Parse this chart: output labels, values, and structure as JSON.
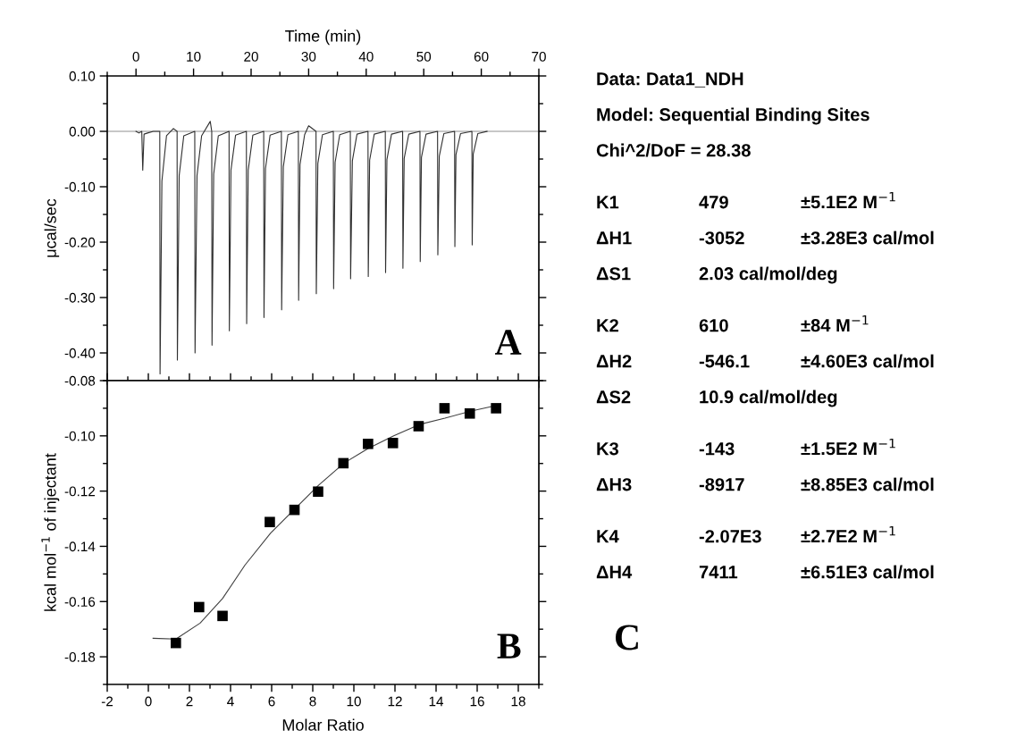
{
  "chart_data": [
    {
      "type": "line",
      "xlabel": "Time (min)",
      "ylabel": "μcal/sec",
      "xlim": [
        -5,
        70
      ],
      "xticks": [
        0,
        10,
        20,
        30,
        40,
        50,
        60,
        70
      ],
      "ylim": [
        -0.45,
        0.1
      ],
      "yticks": [
        {
          "value": 0.1,
          "label": "0.10"
        },
        {
          "value": 0.0,
          "label": "0.00"
        },
        {
          "value": -0.1,
          "label": "-0.10"
        },
        {
          "value": -0.2,
          "label": "-0.20"
        },
        {
          "value": -0.3,
          "label": "-0.30"
        },
        {
          "value": -0.4,
          "label": "-0.40"
        }
      ],
      "series": [
        {
          "color": "#303030",
          "x": [
            0,
            0.5,
            1.0,
            1.17,
            1.4,
            2.0,
            3.0,
            4.13,
            4.18,
            4.5,
            5.3,
            6.5,
            7.14,
            7.19,
            7.5,
            8.3,
            10.21,
            10.26,
            10.6,
            11.4,
            12.9,
            13.16,
            13.21,
            13.5,
            14.3,
            16.17,
            16.22,
            16.5,
            17.3,
            19.18,
            19.23,
            19.5,
            20.3,
            22.19,
            22.24,
            22.5,
            23.3,
            25.26,
            25.31,
            25.6,
            26.4,
            28.21,
            28.26,
            28.5,
            29.3,
            30.0,
            31.28,
            31.33,
            31.6,
            32.4,
            34.29,
            34.34,
            34.6,
            35.4,
            37.24,
            37.29,
            37.6,
            38.4,
            40.31,
            40.36,
            40.6,
            41.4,
            43.32,
            43.37,
            43.6,
            44.4,
            46.33,
            46.38,
            46.6,
            47.4,
            49.34,
            49.39,
            49.6,
            50.4,
            52.4,
            52.45,
            52.7,
            53.5,
            55.36,
            55.41,
            55.6,
            56.4,
            58.37,
            58.42,
            58.6,
            59.4,
            61.0
          ],
          "values": [
            0,
            -0.003,
            0,
            -0.07,
            -0.005,
            -0.003,
            0,
            0,
            -0.438,
            -0.09,
            -0.008,
            0.005,
            0,
            -0.413,
            -0.08,
            -0.008,
            0,
            -0.4,
            -0.08,
            -0.008,
            0.018,
            0,
            -0.386,
            -0.077,
            -0.008,
            0,
            -0.36,
            -0.07,
            -0.007,
            0,
            -0.347,
            -0.07,
            -0.007,
            0,
            -0.336,
            -0.067,
            -0.007,
            0,
            -0.322,
            -0.064,
            -0.006,
            0,
            -0.305,
            -0.06,
            -0.006,
            0.01,
            0,
            -0.293,
            -0.058,
            -0.006,
            0,
            -0.284,
            -0.056,
            -0.006,
            0,
            -0.266,
            -0.053,
            -0.005,
            0,
            -0.262,
            -0.052,
            -0.005,
            0,
            -0.255,
            -0.051,
            -0.005,
            0,
            -0.247,
            -0.049,
            -0.005,
            0,
            -0.235,
            -0.047,
            -0.005,
            0,
            -0.223,
            -0.045,
            -0.004,
            0,
            -0.208,
            -0.042,
            -0.004,
            0,
            -0.205,
            -0.041,
            -0.004,
            0
          ]
        }
      ],
      "ref_lines": [
        {
          "axis": "y",
          "value": 0,
          "color": "#b4b4b4"
        }
      ],
      "annotations": [
        "A"
      ]
    },
    {
      "type": "scatter",
      "xlabel": "Molar Ratio",
      "ylabel": "kcal mol$^{−1}$ of injectant",
      "xlim": [
        -2,
        19
      ],
      "xticks": [
        -2,
        0,
        2,
        4,
        6,
        8,
        10,
        12,
        14,
        16,
        18
      ],
      "ylim": [
        -0.19,
        -0.08
      ],
      "yticks": [
        {
          "value": -0.18,
          "label": "-0.18"
        },
        {
          "value": -0.16,
          "label": "-0.16"
        },
        {
          "value": -0.14,
          "label": "-0.14"
        },
        {
          "value": -0.12,
          "label": "-0.12"
        },
        {
          "value": -0.1,
          "label": "-0.10"
        },
        {
          "value": -0.08,
          "label": "-0.08"
        }
      ],
      "series": [
        {
          "type": "scatter",
          "marker": "square",
          "color": "#000000",
          "x": [
            1.34,
            2.47,
            3.61,
            5.91,
            7.11,
            8.26,
            9.49,
            10.69,
            11.9,
            13.15,
            14.41,
            15.64,
            16.92
          ],
          "values": [
            -0.175,
            -0.162,
            -0.1652,
            -0.1312,
            -0.1268,
            -0.1202,
            -0.1099,
            -0.1029,
            -0.1026,
            -0.0965,
            -0.09,
            -0.0919,
            -0.09
          ]
        },
        {
          "type": "line",
          "color": "#404040",
          "x": [
            0.23,
            1.34,
            2.52,
            3.61,
            4.7,
            5.95,
            7.19,
            8.28,
            9.53,
            10.69,
            11.94,
            13.18,
            14.43,
            15.67,
            16.92
          ],
          "values": [
            -0.1733,
            -0.1736,
            -0.1678,
            -0.1589,
            -0.1468,
            -0.1352,
            -0.126,
            -0.1179,
            -0.1098,
            -0.1046,
            -0.1,
            -0.0959,
            -0.0936,
            -0.0911,
            -0.089
          ]
        }
      ],
      "annotations": [
        "B"
      ]
    },
    {
      "type": "other",
      "annotations": [
        "Data: Data1_NDH\nModel: Sequential Binding Sites\nChi^2/DoF = 28.38",
        "K1\t479\t±5.1E2 M$^{−1}$\nΔH1\t-3052\t±3.28E3 cal/mol\nΔS1\t2.03 cal/mol/deg",
        "K2\t610\t±84 M$^{−1}$\nΔH2\t-546.1\t±4.60E3 cal/mol\nΔS2\t10.9 cal/mol/deg",
        "K3\t-143\t±1.5E2 M$^{−1}$\nΔH3\t-8917\t±8.85E3 cal/mol",
        "K4\t-2.07E3\t±2.7E2 M$^{−1}$\nΔH4\t7411\t±6.51E3 cal/mol",
        "C"
      ]
    }
  ]
}
